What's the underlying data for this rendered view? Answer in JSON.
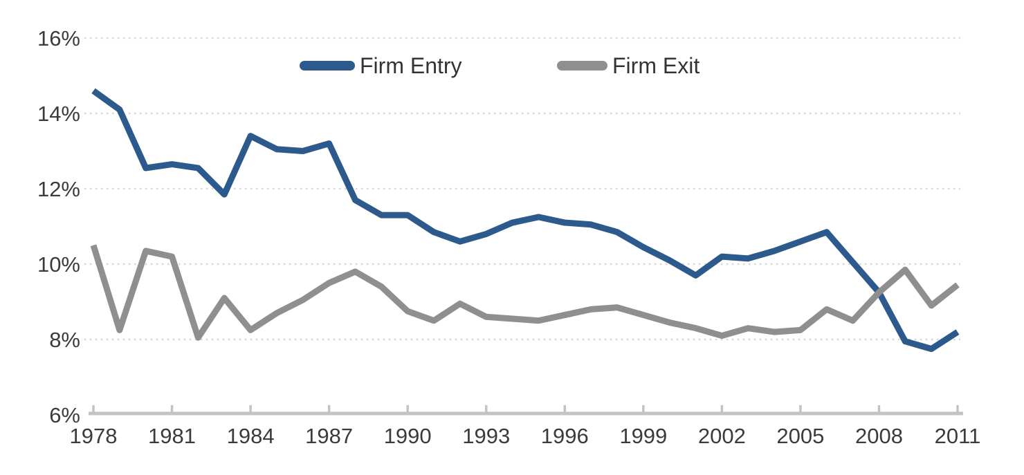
{
  "colors": {
    "firm_entry_line": "#2C5A8C",
    "firm_exit_line": "#8F8F8F",
    "gridline": "#D7D7D7",
    "axis": "#C3C3C3",
    "label_text": "#3B3B3B"
  },
  "chart_data": {
    "type": "line",
    "title": "",
    "xlabel": "",
    "ylabel": "",
    "x": [
      1978,
      1979,
      1980,
      1981,
      1982,
      1983,
      1984,
      1985,
      1986,
      1987,
      1988,
      1989,
      1990,
      1991,
      1992,
      1993,
      1994,
      1995,
      1996,
      1997,
      1998,
      1999,
      2000,
      2001,
      2002,
      2003,
      2004,
      2005,
      2006,
      2007,
      2008,
      2009,
      2010,
      2011
    ],
    "series": [
      {
        "name": "Firm Entry",
        "color_key": "firm_entry_line",
        "values": [
          14.6,
          14.1,
          12.55,
          12.65,
          12.55,
          11.85,
          13.4,
          13.05,
          13.0,
          13.2,
          11.7,
          11.3,
          11.3,
          10.85,
          10.6,
          10.8,
          11.1,
          11.25,
          11.1,
          11.05,
          10.85,
          10.45,
          10.1,
          9.7,
          10.2,
          10.15,
          10.35,
          10.6,
          10.85,
          10.05,
          9.25,
          7.95,
          7.75,
          8.2
        ]
      },
      {
        "name": "Firm Exit",
        "color_key": "firm_exit_line",
        "values": [
          10.5,
          8.25,
          10.35,
          10.2,
          8.05,
          9.1,
          8.25,
          8.7,
          9.05,
          9.5,
          9.8,
          9.4,
          8.75,
          8.5,
          8.95,
          8.6,
          8.55,
          8.5,
          8.65,
          8.8,
          8.85,
          8.65,
          8.45,
          8.3,
          8.1,
          8.3,
          8.2,
          8.25,
          8.8,
          8.5,
          9.25,
          9.85,
          8.9,
          9.45
        ]
      }
    ],
    "ylim": [
      6,
      16
    ],
    "yticks": [
      6,
      8,
      10,
      12,
      14,
      16
    ],
    "ytick_labels": [
      "6%",
      "8%",
      "10%",
      "12%",
      "14%",
      "16%"
    ],
    "xtick_years": [
      1978,
      1981,
      1984,
      1987,
      1990,
      1993,
      1996,
      1999,
      2002,
      2005,
      2008,
      2011
    ],
    "xtick_labels": [
      "1978",
      "1981",
      "1984",
      "1987",
      "1990",
      "1993",
      "1996",
      "1999",
      "2002",
      "2005",
      "2008",
      "2011"
    ],
    "grid": "horizontal-dotted",
    "legend_position": "top-center",
    "legend": [
      {
        "label": "Firm Entry"
      },
      {
        "label": "Firm Exit"
      }
    ]
  }
}
